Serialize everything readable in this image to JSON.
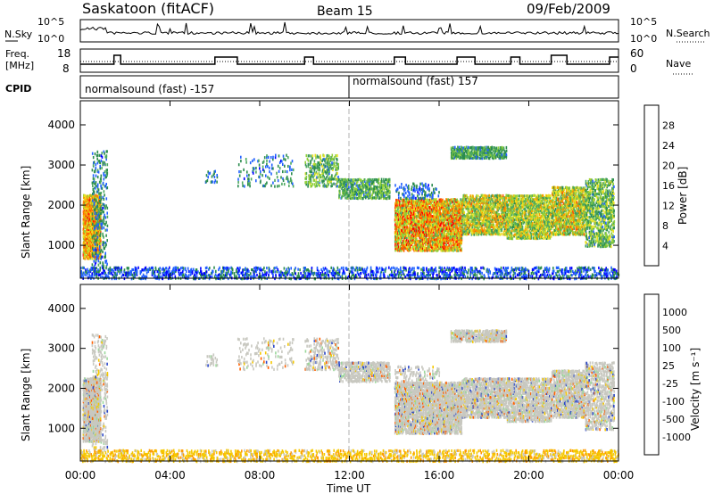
{
  "header": {
    "station": "Saskatoon (fitACF)",
    "beam": "Beam 15",
    "date": "09/Feb/2009"
  },
  "noise_panel": {
    "left_label": "N.Sky",
    "right_label": "N.Search",
    "y_ticks": [
      "10^5",
      "10^0"
    ],
    "right_ticks": [
      "10^5",
      "10^0"
    ]
  },
  "freq_panel": {
    "left_label_1": "Freq.",
    "left_label_2": "[MHz]",
    "right_label": "Nave",
    "y_ticks": [
      "18",
      "8"
    ],
    "right_ticks": [
      "60",
      "0"
    ],
    "ylim": [
      8,
      18
    ],
    "right_ylim": [
      0,
      60
    ]
  },
  "cpid": {
    "label": "CPID",
    "segments": [
      {
        "name": "normalsound (fast) -157",
        "start_hour": 0,
        "end_hour": 12
      },
      {
        "name": "normalsound (fast) 157",
        "start_hour": 12,
        "end_hour": 24
      }
    ]
  },
  "x_axis": {
    "label": "Time UT",
    "ticks": [
      "00:00",
      "04:00",
      "08:00",
      "12:00",
      "16:00",
      "20:00",
      "00:00"
    ],
    "range_hours": [
      0,
      24
    ]
  },
  "chart_data": [
    {
      "type": "heatmap",
      "title": "",
      "xlabel": "",
      "ylabel": "Slant Range [km]",
      "y_ticks": [
        "1000",
        "2000",
        "3000",
        "4000"
      ],
      "ylim": [
        180,
        4600
      ],
      "colorbar_label": "Power [dB]",
      "colorbar_ticks": [
        "4",
        "8",
        "12",
        "16",
        "20",
        "24",
        "28"
      ],
      "colorbar_range": [
        0,
        30
      ],
      "colors": [
        "#0000ff",
        "#2060ff",
        "#2b8c4e",
        "#4da860",
        "#8fcf3a",
        "#e8e020",
        "#f5a000",
        "#ff5500",
        "#ff0000"
      ]
    },
    {
      "type": "heatmap",
      "title": "",
      "xlabel": "Time UT",
      "ylabel": "Slant Range [km]",
      "y_ticks": [
        "1000",
        "2000",
        "3000",
        "4000"
      ],
      "ylim": [
        180,
        4600
      ],
      "colorbar_label": "Velocity [m s^-1]",
      "colorbar_ticks": [
        "1000",
        "500",
        "100",
        "25",
        "-25",
        "-100",
        "-500",
        "-1000"
      ],
      "colors": [
        "#2a46c8",
        "#2d7c3c",
        "#4ab840",
        "#9ad89a",
        "#c8c8c0",
        "#f5c800",
        "#ff9a00",
        "#ff6000",
        "#ff0000"
      ]
    }
  ]
}
